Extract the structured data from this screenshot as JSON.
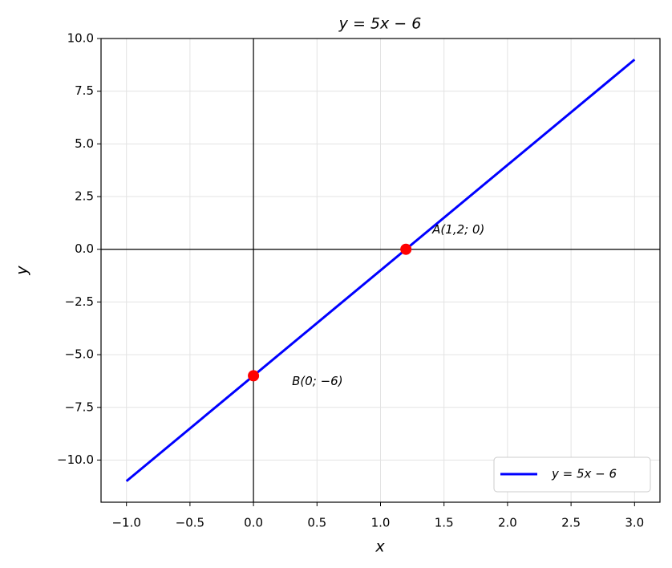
{
  "chart_data": {
    "type": "line",
    "title": "y = 5x − 6",
    "x_label": "x",
    "y_label": "y",
    "series": [
      {
        "name": "y = 5x − 6",
        "color": "#0000ff",
        "x": [
          -1,
          3
        ],
        "values": [
          -11,
          9
        ]
      }
    ],
    "points": [
      {
        "label": "A(1,2; 0)",
        "x": 1.2,
        "y": 0,
        "color": "#ff0000"
      },
      {
        "label": "B(0; −6)",
        "x": 0,
        "y": -6,
        "color": "#ff0000"
      }
    ],
    "xlim": [
      -1.2,
      3.2
    ],
    "xticks": [
      {
        "value": -1,
        "label": "−1.0"
      },
      {
        "value": -0.5,
        "label": "−0.5"
      },
      {
        "value": 0,
        "label": "0.0"
      },
      0.5,
      {
        "value": 1,
        "label": "1.0"
      },
      1.5,
      {
        "value": 2,
        "label": "2.0"
      },
      2.5,
      {
        "value": 3,
        "label": "3.0"
      }
    ],
    "ylim": [
      -12,
      10
    ],
    "yticks": [
      {
        "value": -10,
        "label": "−10.0"
      },
      {
        "value": -7.5,
        "label": "−7.5"
      },
      {
        "value": -5,
        "label": "−5.0"
      },
      {
        "value": -2.5,
        "label": "−2.5"
      },
      {
        "value": 0,
        "label": "0.0"
      },
      2.5,
      {
        "value": 5,
        "label": "5.0"
      },
      7.5,
      {
        "value": 10,
        "label": "10.0"
      }
    ],
    "grid": true,
    "zero_lines": true,
    "legend": "lower right"
  }
}
